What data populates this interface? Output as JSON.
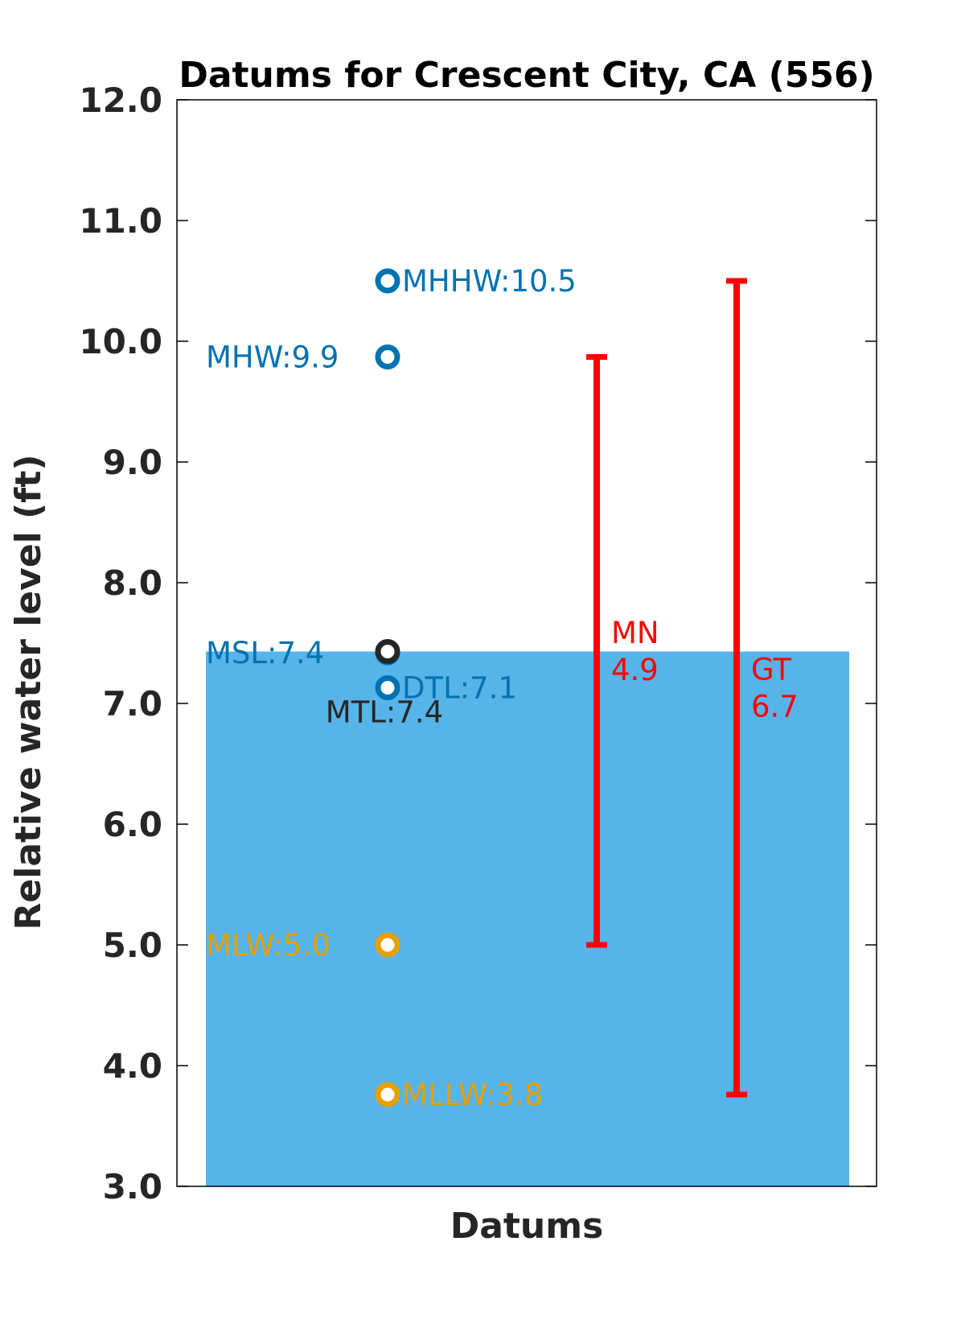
{
  "chart_data": {
    "type": "scatter",
    "title": "Datums for Crescent City, CA (556)",
    "xlabel": "Datums",
    "ylabel": "Relative water level (ft)",
    "ylim": [
      3.0,
      12.0
    ],
    "yticks": [
      "3.0",
      "4.0",
      "5.0",
      "6.0",
      "7.0",
      "8.0",
      "9.0",
      "10.0",
      "11.0",
      "12.0"
    ],
    "grid": false,
    "background_level": {
      "value": 7.43,
      "color": "#56b4e9"
    },
    "points": [
      {
        "label": "MHHW:10.5",
        "value": 10.5,
        "color": "#0072b2",
        "label_side": "right"
      },
      {
        "label": "MHW:9.9",
        "value": 9.87,
        "color": "#0072b2",
        "label_side": "left"
      },
      {
        "label": "MSL:7.4",
        "value": 7.42,
        "color": "#0072b2",
        "label_side": "left"
      },
      {
        "label": "DTL:7.1",
        "value": 7.13,
        "color": "#0072b2",
        "label_side": "right"
      },
      {
        "label": "MTL:7.4",
        "value": 7.43,
        "color": "#262626",
        "label_side": "below"
      },
      {
        "label": "MLW:5.0",
        "value": 5.0,
        "color": "#e69f00",
        "label_side": "left"
      },
      {
        "label": "MLLW:3.8",
        "value": 3.76,
        "color": "#e69f00",
        "label_side": "right"
      }
    ],
    "ranges": [
      {
        "name": "MN",
        "value_text": "4.9",
        "low": 5.0,
        "high": 9.87,
        "color": "#ff0000"
      },
      {
        "name": "GT",
        "value_text": "6.7",
        "low": 3.76,
        "high": 10.5,
        "color": "#ff0000"
      }
    ]
  }
}
